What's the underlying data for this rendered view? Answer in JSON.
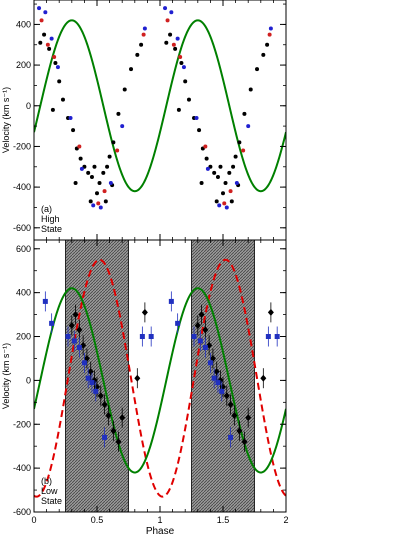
{
  "chart_data": [
    {
      "panel": "a",
      "type": "scatter",
      "annotation": [
        "(a)",
        "High",
        "State"
      ],
      "ylabel": "Velocity (km s⁻¹)",
      "xlabel": "",
      "xlim": [
        0,
        2
      ],
      "ylim": [
        -660,
        520
      ],
      "yticks": [
        -600,
        -400,
        -200,
        0,
        200,
        400
      ],
      "xticks": [
        0,
        0.5,
        1,
        1.5,
        2
      ],
      "show_x_tick_labels": false,
      "grid": false,
      "sine_fit": {
        "color": "#008000",
        "gamma": 0,
        "K": 420,
        "phi0": 0.05
      },
      "series": [
        {
          "color": "#000000",
          "points": [
            [
              0.05,
              310
            ],
            [
              0.08,
              350
            ],
            [
              0.12,
              280
            ],
            [
              0.17,
              210
            ],
            [
              0.2,
              120
            ],
            [
              0.23,
              30
            ],
            [
              0.27,
              -60
            ],
            [
              0.31,
              -120
            ],
            [
              0.34,
              -210
            ],
            [
              0.37,
              -260
            ],
            [
              0.4,
              -300
            ],
            [
              0.43,
              -330
            ],
            [
              0.46,
              -350
            ],
            [
              0.5,
              -430
            ],
            [
              0.52,
              -380
            ],
            [
              0.55,
              -330
            ],
            [
              0.58,
              -300
            ],
            [
              0.6,
              -250
            ],
            [
              0.63,
              -180
            ],
            [
              0.67,
              -40
            ],
            [
              0.72,
              80
            ],
            [
              0.77,
              180
            ],
            [
              0.82,
              250
            ],
            [
              0.85,
              300
            ],
            [
              0.15,
              -20
            ],
            [
              0.33,
              -380
            ],
            [
              0.48,
              -300
            ],
            [
              0.57,
              -470
            ],
            [
              0.62,
              -390
            ],
            [
              0.45,
              -470
            ]
          ]
        },
        {
          "color": "#2020d0",
          "points": [
            [
              0.04,
              480
            ],
            [
              0.09,
              460
            ],
            [
              0.14,
              330
            ],
            [
              0.19,
              190
            ],
            [
              0.29,
              -60
            ],
            [
              0.38,
              -310
            ],
            [
              0.47,
              -490
            ],
            [
              0.53,
              -500
            ],
            [
              0.61,
              -380
            ],
            [
              0.7,
              -100
            ],
            [
              0.88,
              380
            ]
          ]
        },
        {
          "color": "#d02020",
          "points": [
            [
              0.06,
              420
            ],
            [
              0.11,
              300
            ],
            [
              0.16,
              240
            ],
            [
              0.36,
              -200
            ],
            [
              0.51,
              -480
            ],
            [
              0.56,
              -420
            ],
            [
              0.66,
              -220
            ],
            [
              0.87,
              350
            ]
          ]
        }
      ]
    },
    {
      "panel": "b",
      "type": "scatter",
      "annotation": [
        "(b)",
        "Low",
        "State"
      ],
      "ylabel": "Velocity (km s⁻¹)",
      "xlabel": "Phase",
      "xlim": [
        0,
        2
      ],
      "ylim": [
        -600,
        640
      ],
      "yticks": [
        -600,
        -400,
        -200,
        0,
        200,
        400,
        600
      ],
      "xticks": [
        0,
        0.5,
        1,
        1.5,
        2
      ],
      "xtick_labels": [
        "0",
        "0.5",
        "1",
        "1.5",
        "2"
      ],
      "grid": false,
      "shaded_phase_ranges": [
        [
          0.25,
          0.75
        ],
        [
          1.25,
          1.75
        ]
      ],
      "sine_fit": {
        "color": "#008000",
        "gamma": 0,
        "K": 420,
        "phi0": 0.05
      },
      "dashed_curve": {
        "color": "#e00000",
        "gamma": 10,
        "K": 540,
        "phi0": 0.27
      },
      "series": [
        {
          "color": "#000000",
          "marker": "diamond",
          "error_bars": true,
          "points": [
            [
              0.3,
              250
            ],
            [
              0.33,
              300
            ],
            [
              0.36,
              230
            ],
            [
              0.39,
              160
            ],
            [
              0.42,
              100
            ],
            [
              0.45,
              40
            ],
            [
              0.48,
              0
            ],
            [
              0.5,
              -30
            ],
            [
              0.53,
              -70
            ],
            [
              0.56,
              -110
            ],
            [
              0.59,
              -160
            ],
            [
              0.63,
              -230
            ],
            [
              0.67,
              -280
            ],
            [
              0.7,
              -170
            ],
            [
              0.82,
              10
            ],
            [
              0.88,
              310
            ]
          ]
        },
        {
          "color": "#2030c0",
          "marker": "square",
          "error_bars": true,
          "points": [
            [
              0.09,
              360
            ],
            [
              0.14,
              260
            ],
            [
              0.27,
              200
            ],
            [
              0.32,
              180
            ],
            [
              0.36,
              150
            ],
            [
              0.4,
              80
            ],
            [
              0.43,
              10
            ],
            [
              0.46,
              -10
            ],
            [
              0.49,
              -50
            ],
            [
              0.56,
              -260
            ],
            [
              0.86,
              200
            ],
            [
              0.93,
              200
            ]
          ]
        }
      ]
    }
  ]
}
